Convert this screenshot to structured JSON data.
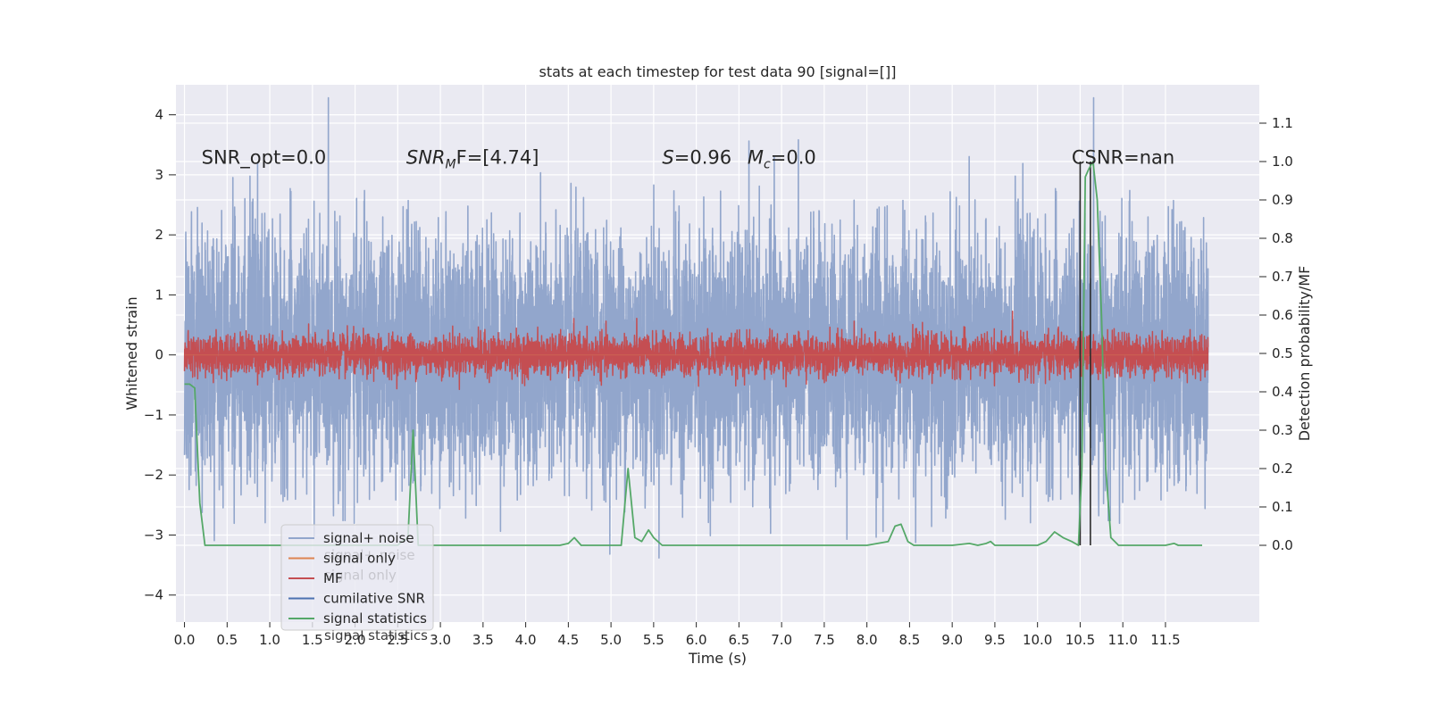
{
  "chart_data": {
    "type": "line",
    "title": "stats at each timestep for test data 90 [signal=[]]",
    "xlabel": "Time (s)",
    "ylabel": "Whitened strain",
    "ylabel_right": "Detection probability/MF",
    "xlim": [
      -0.1,
      12.6
    ],
    "ylim": [
      -4.45,
      4.5
    ],
    "ylim_right": [
      -0.2,
      1.2
    ],
    "x_ticks": [
      0.0,
      0.5,
      1.0,
      1.5,
      2.0,
      2.5,
      3.0,
      3.5,
      4.0,
      4.5,
      5.0,
      5.5,
      6.0,
      6.5,
      7.0,
      7.5,
      8.0,
      8.5,
      9.0,
      9.5,
      10.0,
      10.5,
      11.0,
      11.5
    ],
    "x_tick_labels": [
      "0.0",
      "0.5",
      "1.0",
      "1.5",
      "2.0",
      "2.5",
      "3.0",
      "3.5",
      "4.0",
      "4.5",
      "5.0",
      "5.5",
      "6.0",
      "6.5",
      "7.0",
      "7.5",
      "8.0",
      "8.5",
      "9.0",
      "9.5",
      "10.0",
      "10.5",
      "11.0",
      "11.5"
    ],
    "y_ticks": [
      -4,
      -3,
      -2,
      -1,
      0,
      1,
      2,
      3,
      4
    ],
    "y_tick_labels": [
      "−4",
      "−3",
      "−2",
      "−1",
      "0",
      "1",
      "2",
      "3",
      "4"
    ],
    "y_right_ticks": [
      0.0,
      0.1,
      0.2,
      0.3,
      0.4,
      0.5,
      0.6,
      0.7,
      0.8,
      0.9,
      1.0,
      1.1
    ],
    "y_right_tick_labels": [
      "0.0",
      "0.1",
      "0.2",
      "0.3",
      "0.4",
      "0.5",
      "0.6",
      "0.7",
      "0.8",
      "0.9",
      "1.0",
      "1.1"
    ],
    "grid": true,
    "background": "#eaeaf2",
    "annotations": [
      {
        "id": "snr-opt",
        "text": "SNR_opt=0.0",
        "x": 0.2,
        "y": 3.3
      },
      {
        "id": "snr-mf",
        "base": "SNR",
        "sub": "M",
        "rest": "F=[4.74]",
        "x": 2.6,
        "y": 3.3
      },
      {
        "id": "s-value",
        "base": "S",
        "rest": "=0.96",
        "x": 5.6,
        "y": 3.3
      },
      {
        "id": "mc-value",
        "base": "M",
        "sub": "c",
        "rest": "=0.0",
        "x": 6.6,
        "y": 3.3
      },
      {
        "id": "csnr",
        "text": "CSNR=nan",
        "x": 10.4,
        "y": 3.3
      }
    ],
    "series": [
      {
        "name": "signal+ noise",
        "color": "#92a6cc",
        "axis": "left",
        "kind": "noise",
        "range": [
          0.0,
          12.0
        ],
        "amplitude": 1.0
      },
      {
        "name": "signal only",
        "color": "#dd8452",
        "axis": "left",
        "kind": "flat",
        "value": 0
      },
      {
        "name": "MF",
        "color": "#c44e52",
        "axis": "left",
        "kind": "noise",
        "range": [
          0.0,
          12.0
        ],
        "amplitude": 0.17
      },
      {
        "name": "cumilative SNR",
        "color": "#4c72b0",
        "axis": "left",
        "kind": "none"
      },
      {
        "name": "signal statistics",
        "color": "#55a868",
        "axis": "right",
        "kind": "line",
        "x": [
          0.0,
          0.06,
          0.12,
          0.18,
          0.24,
          0.5,
          1.0,
          1.5,
          2.0,
          2.5,
          2.55,
          2.62,
          2.68,
          2.74,
          2.8,
          3.0,
          3.5,
          4.0,
          4.4,
          4.5,
          4.57,
          4.65,
          4.8,
          5.0,
          5.12,
          5.2,
          5.28,
          5.36,
          5.44,
          5.5,
          5.6,
          6.0,
          7.0,
          8.0,
          8.25,
          8.33,
          8.4,
          8.48,
          8.55,
          9.0,
          9.2,
          9.3,
          9.4,
          9.45,
          9.5,
          9.6,
          10.0,
          10.1,
          10.2,
          10.3,
          10.4,
          10.48,
          10.52,
          10.56,
          10.6,
          10.65,
          10.7,
          10.75,
          10.8,
          10.86,
          10.95,
          11.0,
          11.5,
          11.6,
          11.65,
          11.7,
          11.8,
          11.93
        ],
        "y": [
          0.42,
          0.42,
          0.41,
          0.11,
          0.0,
          0.0,
          0.0,
          0.0,
          0.0,
          0.0,
          0.01,
          0.02,
          0.3,
          0.0,
          0.0,
          0.0,
          0.0,
          0.0,
          0.0,
          0.005,
          0.02,
          0.0,
          0.0,
          0.0,
          0.0,
          0.2,
          0.02,
          0.01,
          0.04,
          0.02,
          0.0,
          0.0,
          0.0,
          0.0,
          0.01,
          0.05,
          0.055,
          0.01,
          0.0,
          0.0,
          0.005,
          0.0,
          0.005,
          0.01,
          0.0,
          0.0,
          0.0,
          0.01,
          0.035,
          0.02,
          0.01,
          0.0,
          0.2,
          0.96,
          0.98,
          1.0,
          0.9,
          0.6,
          0.2,
          0.02,
          0.0,
          0.0,
          0.0,
          0.005,
          0.0,
          0.0,
          0.0,
          0.0
        ]
      }
    ],
    "vertical_lines": [
      {
        "x": 10.5,
        "color": "#2b2b2b"
      },
      {
        "x": 10.62,
        "color": "#2b2b2b"
      }
    ],
    "legend": {
      "placement": "lower-left",
      "entries": [
        {
          "name": "signal+ noise",
          "color": "#92a6cc"
        },
        {
          "name": "signal only",
          "color": "#dd8452"
        },
        {
          "name": "MF",
          "color": "#c44e52"
        },
        {
          "name": "cumilative SNR",
          "color": "#4c72b0"
        },
        {
          "name": "signal statistics",
          "color": "#55a868"
        }
      ],
      "ghost_entries": [
        "signal+ noise",
        "signal only",
        "",
        "",
        "signal statistics"
      ]
    }
  }
}
